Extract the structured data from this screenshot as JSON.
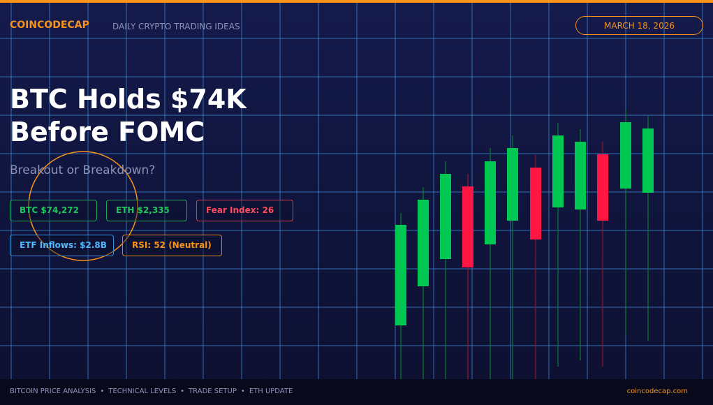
{
  "header": {
    "brand": "COINCODECAP",
    "tagline": "DAILY CRYPTO TRADING IDEAS",
    "date": "MARCH 18, 2026"
  },
  "headline": {
    "lines": [
      "BTC Holds $74K",
      "Before FOMC"
    ],
    "subtitle": "Breakout or Breakdown?"
  },
  "badges": [
    "BTC $74,272",
    "ETH $2,335",
    "Fear Index: 26",
    "ETF Inflows: $2.8B",
    "RSI: 52 (Neutral)"
  ],
  "footer": {
    "topics": [
      "BITCOIN PRICE ANALYSIS",
      "TECHNICAL LEVELS",
      "TRADE SETUP",
      "ETH UPDATE"
    ],
    "separator": "•",
    "site": "coincodecap.com"
  }
}
